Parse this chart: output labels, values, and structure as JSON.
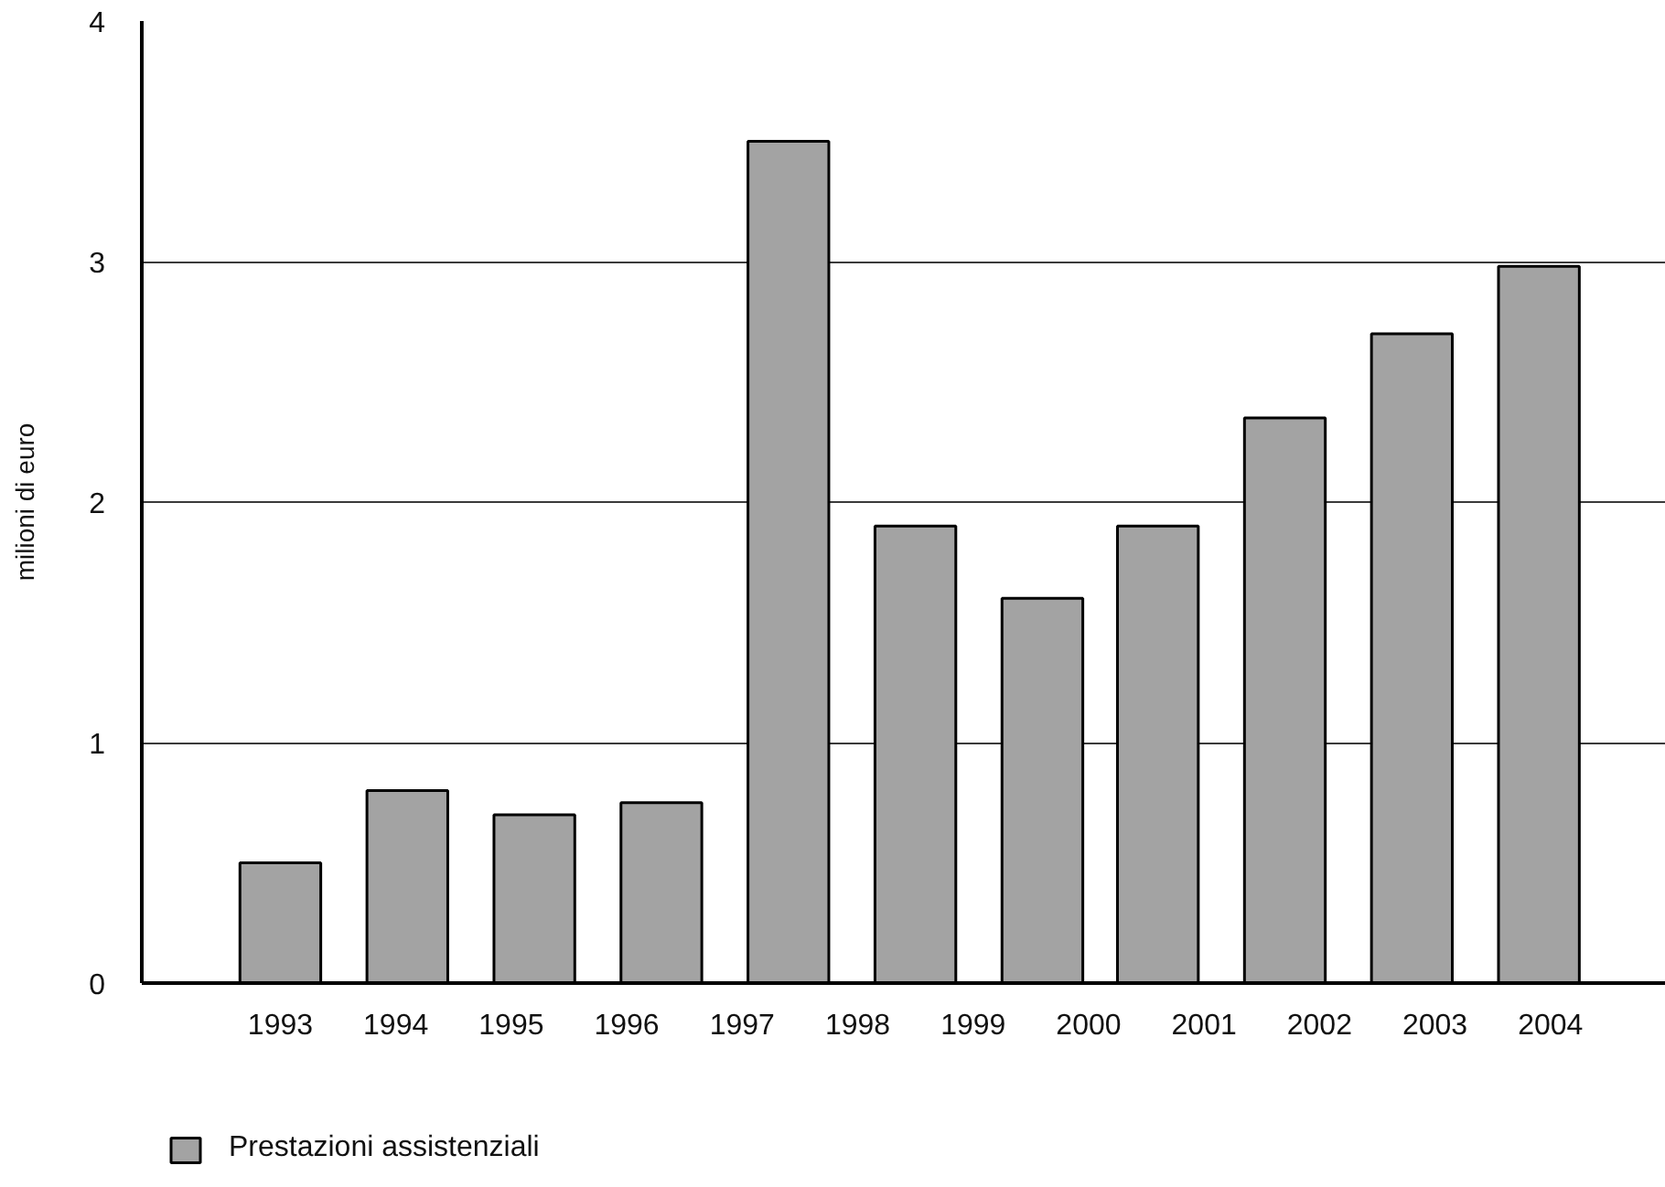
{
  "chart_data": {
    "type": "bar",
    "ylabel": "milioni di euro",
    "x": [
      1993,
      1994.1,
      1995.2,
      1996.3,
      1997.4,
      1998.5,
      1999.6,
      2000.6,
      2001.7,
      2002.8,
      2003.9
    ],
    "series": [
      {
        "name": "Prestazioni assistenziali",
        "color": "#a3a3a3",
        "values": [
          0.5,
          0.8,
          0.7,
          0.75,
          3.5,
          1.9,
          1.6,
          1.9,
          2.35,
          2.7,
          2.98
        ]
      }
    ],
    "xlim": [
      1991.8,
      2005
    ],
    "xticks": [
      1993,
      1994,
      1995,
      1996,
      1997,
      1998,
      1999,
      2000,
      2001,
      2002,
      2003,
      2004
    ],
    "ylim": [
      0,
      4
    ],
    "yticks": [
      0,
      1,
      2,
      3,
      4
    ],
    "grid": "y",
    "legend": "bottom left"
  }
}
